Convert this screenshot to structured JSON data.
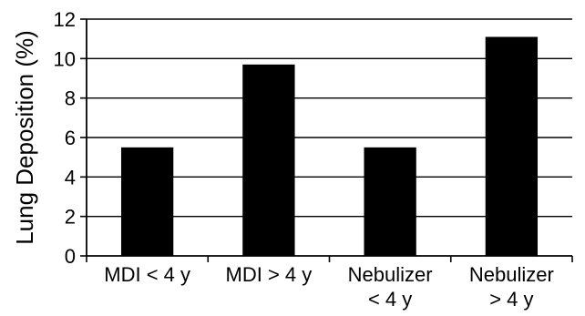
{
  "chart_data": {
    "type": "bar",
    "title": "",
    "xlabel": "",
    "ylabel": "Lung Deposition (%)",
    "ylim": [
      0,
      12
    ],
    "yticks": [
      0,
      2,
      4,
      6,
      8,
      10,
      12
    ],
    "grid": "horizontal",
    "legend": "none",
    "bar_color": "#000000",
    "categories": [
      {
        "line1": "MDI < 4 y",
        "line2": ""
      },
      {
        "line1": "MDI > 4 y",
        "line2": ""
      },
      {
        "line1": "Nebulizer",
        "line2": "< 4 y"
      },
      {
        "line1": "Nebulizer",
        "line2": "> 4 y"
      }
    ],
    "values": [
      5.5,
      9.7,
      5.5,
      11.1
    ]
  }
}
